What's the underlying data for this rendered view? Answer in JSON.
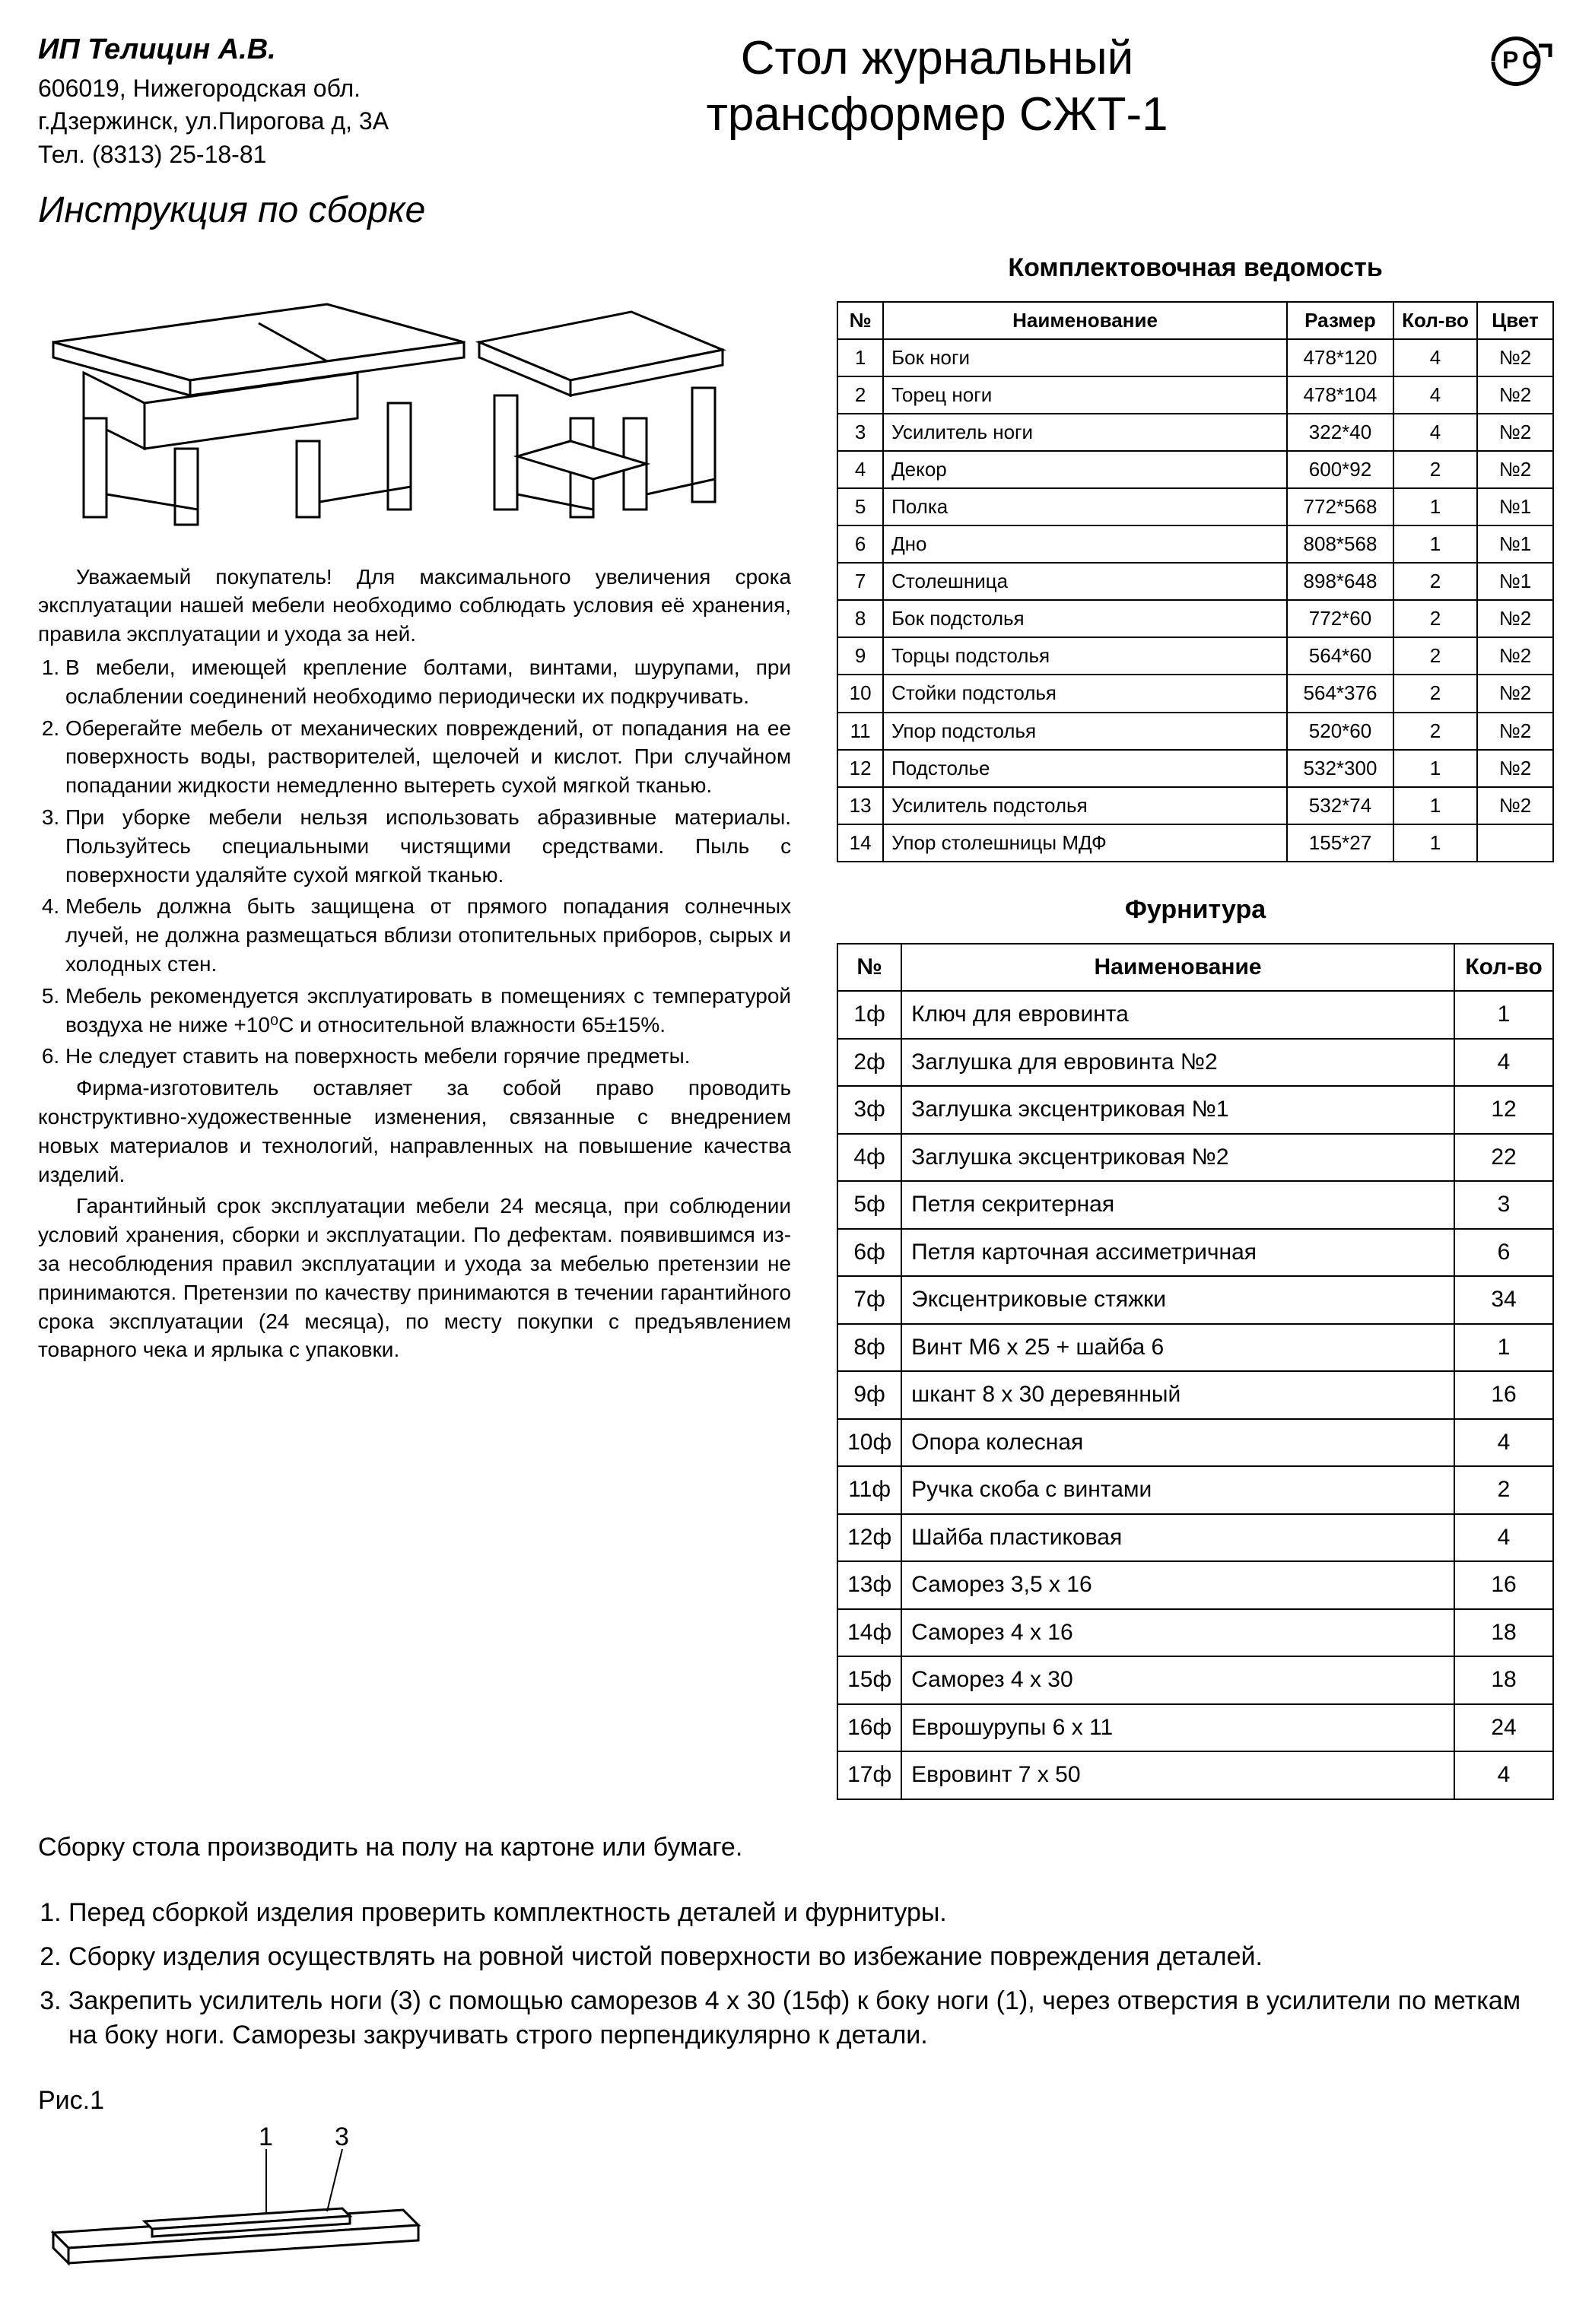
{
  "company": {
    "name": "ИП Телицин А.В.",
    "addr1": "606019, Нижегородская обл.",
    "addr2": "г.Дзержинск, ул.Пирогова д, 3А",
    "phone": "Тел. (8313) 25-18-81"
  },
  "title_line1": "Стол журнальный",
  "title_line2": "трансформер СЖТ-1",
  "instr_heading": "Инструкция по сборке",
  "parts_heading": "Комплектовочная ведомость",
  "hardware_heading": "Фурнитура",
  "parts_columns": [
    "№",
    "Наименование",
    "Размер",
    "Кол-во",
    "Цвет"
  ],
  "parts_rows": [
    [
      "1",
      "Бок ноги",
      "478*120",
      "4",
      "№2"
    ],
    [
      "2",
      "Торец ноги",
      "478*104",
      "4",
      "№2"
    ],
    [
      "3",
      "Усилитель ноги",
      "322*40",
      "4",
      "№2"
    ],
    [
      "4",
      "Декор",
      "600*92",
      "2",
      "№2"
    ],
    [
      "5",
      "Полка",
      "772*568",
      "1",
      "№1"
    ],
    [
      "6",
      "Дно",
      "808*568",
      "1",
      "№1"
    ],
    [
      "7",
      "Столешница",
      "898*648",
      "2",
      "№1"
    ],
    [
      "8",
      "Бок подстолья",
      "772*60",
      "2",
      "№2"
    ],
    [
      "9",
      "Торцы подстолья",
      "564*60",
      "2",
      "№2"
    ],
    [
      "10",
      "Стойки подстолья",
      "564*376",
      "2",
      "№2"
    ],
    [
      "11",
      "Упор подстолья",
      "520*60",
      "2",
      "№2"
    ],
    [
      "12",
      "Подстолье",
      "532*300",
      "1",
      "№2"
    ],
    [
      "13",
      "Усилитель подстолья",
      "532*74",
      "1",
      "№2"
    ],
    [
      "14",
      "Упор столешницы МДФ",
      "155*27",
      "1",
      ""
    ]
  ],
  "hw_columns": [
    "№",
    "Наименование",
    "Кол-во"
  ],
  "hw_rows": [
    [
      "1ф",
      "Ключ для евровинта",
      "1"
    ],
    [
      "2ф",
      "Заглушка для евровинта №2",
      "4"
    ],
    [
      "3ф",
      "Заглушка эксцентриковая №1",
      "12"
    ],
    [
      "4ф",
      "Заглушка эксцентриковая №2",
      "22"
    ],
    [
      "5ф",
      "Петля секритерная",
      "3"
    ],
    [
      "6ф",
      "Петля карточная ассиметричная",
      "6"
    ],
    [
      "7ф",
      "Эксцентриковые стяжки",
      "34"
    ],
    [
      "8ф",
      "Винт М6 х 25 + шайба 6",
      "1"
    ],
    [
      "9ф",
      "шкант 8 х 30 деревянный",
      "16"
    ],
    [
      "10ф",
      "Опора колесная",
      "4"
    ],
    [
      "11ф",
      "Ручка скоба с винтами",
      "2"
    ],
    [
      "12ф",
      "Шайба пластиковая",
      "4"
    ],
    [
      "13ф",
      "Саморез 3,5 х 16",
      "16"
    ],
    [
      "14ф",
      "Саморез 4 х 16",
      "18"
    ],
    [
      "15ф",
      "Саморез 4 х 30",
      "18"
    ],
    [
      "16ф",
      "Еврошурупы 6 х 11",
      "24"
    ],
    [
      "17ф",
      "Евровинт 7 х 50",
      "4"
    ]
  ],
  "intro": "Уважаемый покупатель! Для максимального увеличения срока эксплуатации нашей мебели необходимо соблюдать условия её хранения, правила эксплуатации и ухода за ней.",
  "care_items": [
    "В мебели, имеющей крепление болтами, винтами, шурупами, при ослаблении соединений необходимо периодически их подкручивать.",
    "Оберегайте мебель от механических повреждений, от попадания на ее поверхность воды, растворителей, щелочей и кислот. При случайном попадании жидкости немедленно вытереть сухой мягкой тканью.",
    "При уборке мебели нельзя использовать абразивные материалы. Пользуйтесь специальными чистящими средствами. Пыль с поверхности удаляйте сухой мягкой тканью.",
    "Мебель должна быть защищена от прямого попадания солнечных лучей, не должна размещаться вблизи отопительных приборов, сырых и холодных стен.",
    "Мебель рекомендуется эксплуатировать в помещениях с температурой воздуха не ниже +10⁰С и относительной влажности 65±15%.",
    "Не следует ставить на поверхность мебели горячие предметы."
  ],
  "after1": "Фирма-изготовитель оставляет за собой право проводить конструктивно-художественные изменения, связанные с внедрением новых материалов и технологий, направленных на повышение качества изделий.",
  "after2": "Гарантийный срок эксплуатации мебели 24 месяца, при соблюдении условий хранения, сборки и эксплуатации. По дефектам. появившимся из-за несоблюдения правил эксплуатации и ухода за мебелью претензии не принимаются. Претензии по качеству принимаются в течении гарантийного срока эксплуатации (24 месяца), по месту покупки с предъявлением товарного чека и ярлыка с упаковки.",
  "bottom_note": "Сборку стола производить на полу на картоне или бумаге.",
  "steps": [
    "Перед сборкой изделия проверить комплектность деталей и фурнитуры.",
    "Сборку изделия осуществлять на ровной чистой поверхности во избежание повреждения деталей.",
    "Закрепить усилитель ноги (3) с помощью саморезов 4 х 30 (15ф) к боку ноги (1), через отверстия в усилители по меткам на боку ноги. Саморезы закручивать строго перпендикулярно к детали."
  ],
  "fig_label": "Рис.1",
  "fig_callout1": "1",
  "fig_callout3": "3",
  "colors": {
    "text": "#000000",
    "bg": "#ffffff",
    "border": "#000000"
  }
}
